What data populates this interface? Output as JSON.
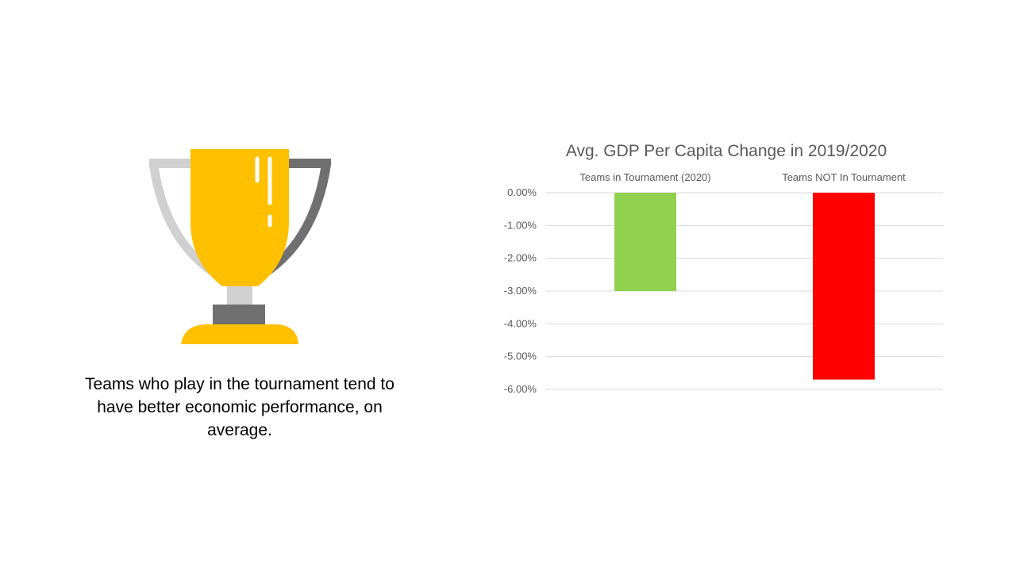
{
  "slide": {
    "caption": "Teams who play in the tournament tend to have better economic performance, on average."
  },
  "trophy": {
    "icon": "trophy-icon",
    "colors": {
      "cup": "#FFC000",
      "handle_light": "#D0D0D0",
      "handle_dark": "#707070",
      "highlight": "#FFFFFF"
    }
  },
  "chart_data": {
    "type": "bar",
    "title": "Avg. GDP Per Capita Change in 2019/2020",
    "categories": [
      "Teams in Tournament (2020)",
      "Teams NOT In Tournament"
    ],
    "values": [
      -3.0,
      -5.7
    ],
    "colors": [
      "#92D050",
      "#FF0000"
    ],
    "ylim": [
      -6,
      0
    ],
    "yticks": [
      0,
      -1,
      -2,
      -3,
      -4,
      -5,
      -6
    ],
    "ytick_labels": [
      "0.00%",
      "-1.00%",
      "-2.00%",
      "-3.00%",
      "-4.00%",
      "-5.00%",
      "-6.00%"
    ],
    "xlabel": "",
    "ylabel": "",
    "category_labels_position": "top",
    "grid": true,
    "legend": false
  }
}
